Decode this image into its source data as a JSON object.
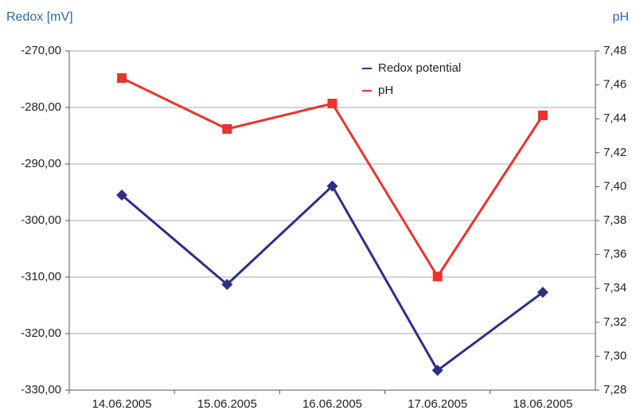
{
  "chart_data": {
    "type": "line",
    "y_label": "Redox [mV]",
    "y2_label": "pH",
    "categories": [
      "14.06.2005",
      "15.06.2005",
      "16.06.2005",
      "17.06.2005",
      "18.06.2005"
    ],
    "series": [
      {
        "name": "Redox potential",
        "color": "#2e2e86",
        "marker": "diamond",
        "values": [
          -295.5,
          -311.3,
          -293.9,
          -326.5,
          -312.7
        ]
      },
      {
        "name": "pH",
        "color": "#e8332e",
        "marker": "square",
        "axis": "y2",
        "values": [
          7.464,
          7.434,
          7.449,
          7.347,
          7.442
        ]
      }
    ],
    "ylim": [
      -330,
      -270
    ],
    "yticks": [
      {
        "value": -330,
        "label": "-330,00"
      },
      {
        "value": -320,
        "label": "-320,00"
      },
      {
        "value": -310,
        "label": "-310,00"
      },
      {
        "value": -300,
        "label": "-300,00"
      },
      {
        "value": -290,
        "label": "-290,00"
      },
      {
        "value": -280,
        "label": "-280,00"
      },
      {
        "value": -270,
        "label": "-270,00"
      }
    ],
    "y2lim": [
      7.28,
      7.48
    ],
    "y2ticks": [
      {
        "value": 7.28,
        "label": "7,28"
      },
      {
        "value": 7.3,
        "label": "7,30"
      },
      {
        "value": 7.32,
        "label": "7,32"
      },
      {
        "value": 7.34,
        "label": "7,34"
      },
      {
        "value": 7.36,
        "label": "7,36"
      },
      {
        "value": 7.38,
        "label": "7,38"
      },
      {
        "value": 7.4,
        "label": "7,40"
      },
      {
        "value": 7.42,
        "label": "7,42"
      },
      {
        "value": 7.44,
        "label": "7,44"
      },
      {
        "value": 7.46,
        "label": "7,46"
      },
      {
        "value": 7.48,
        "label": "7,48"
      }
    ],
    "grid": true,
    "legend": "upper right"
  }
}
